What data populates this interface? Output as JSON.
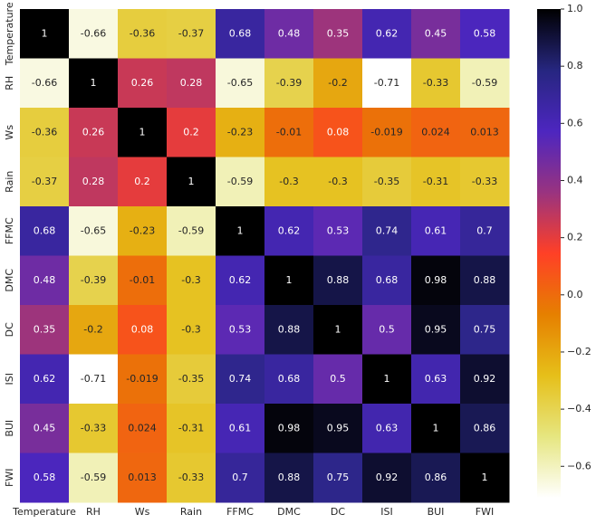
{
  "chart_data": {
    "type": "heatmap",
    "x_categories": [
      "Temperature",
      "RH",
      "Ws",
      "Rain",
      "FFMC",
      "DMC",
      "DC",
      "ISI",
      "BUI",
      "FWI"
    ],
    "y_categories": [
      "Temperature",
      "RH",
      "Ws",
      "Rain",
      "FFMC",
      "DMC",
      "DC",
      "ISI",
      "BUI",
      "FWI"
    ],
    "values": [
      [
        1,
        -0.66,
        -0.36,
        -0.37,
        0.68,
        0.48,
        0.35,
        0.62,
        0.45,
        0.58
      ],
      [
        -0.66,
        1,
        0.26,
        0.28,
        -0.65,
        -0.39,
        -0.2,
        -0.71,
        -0.33,
        -0.59
      ],
      [
        -0.36,
        0.26,
        1,
        0.2,
        -0.23,
        -0.01,
        0.08,
        -0.019,
        0.024,
        0.013
      ],
      [
        -0.37,
        0.28,
        0.2,
        1,
        -0.59,
        -0.3,
        -0.3,
        -0.35,
        -0.31,
        -0.33
      ],
      [
        0.68,
        -0.65,
        -0.23,
        -0.59,
        1,
        0.62,
        0.53,
        0.74,
        0.61,
        0.7
      ],
      [
        0.48,
        -0.39,
        -0.01,
        -0.3,
        0.62,
        1,
        0.88,
        0.68,
        0.98,
        0.88
      ],
      [
        0.35,
        -0.2,
        0.08,
        -0.3,
        0.53,
        0.88,
        1,
        0.5,
        0.95,
        0.75
      ],
      [
        0.62,
        -0.71,
        -0.019,
        -0.35,
        0.74,
        0.68,
        0.5,
        1,
        0.63,
        0.92
      ],
      [
        0.45,
        -0.33,
        0.024,
        -0.31,
        0.61,
        0.98,
        0.95,
        0.63,
        1,
        0.86
      ],
      [
        0.58,
        -0.59,
        0.013,
        -0.33,
        0.7,
        0.88,
        0.75,
        0.92,
        0.86,
        1
      ]
    ],
    "colormap": "CMRmap_r",
    "clim": [
      -0.71,
      1
    ],
    "cticks": [
      {
        "value": 1.0,
        "label": "1.0"
      },
      {
        "value": 0.8,
        "label": "0.8"
      },
      {
        "value": 0.6,
        "label": "0.6"
      },
      {
        "value": 0.4,
        "label": "0.4"
      },
      {
        "value": 0.2,
        "label": "0.2"
      },
      {
        "value": 0.0,
        "label": "0.0"
      },
      {
        "value": -0.2,
        "label": "−0.2"
      },
      {
        "value": -0.4,
        "label": "−0.4"
      },
      {
        "value": -0.6,
        "label": "−0.6"
      }
    ]
  }
}
